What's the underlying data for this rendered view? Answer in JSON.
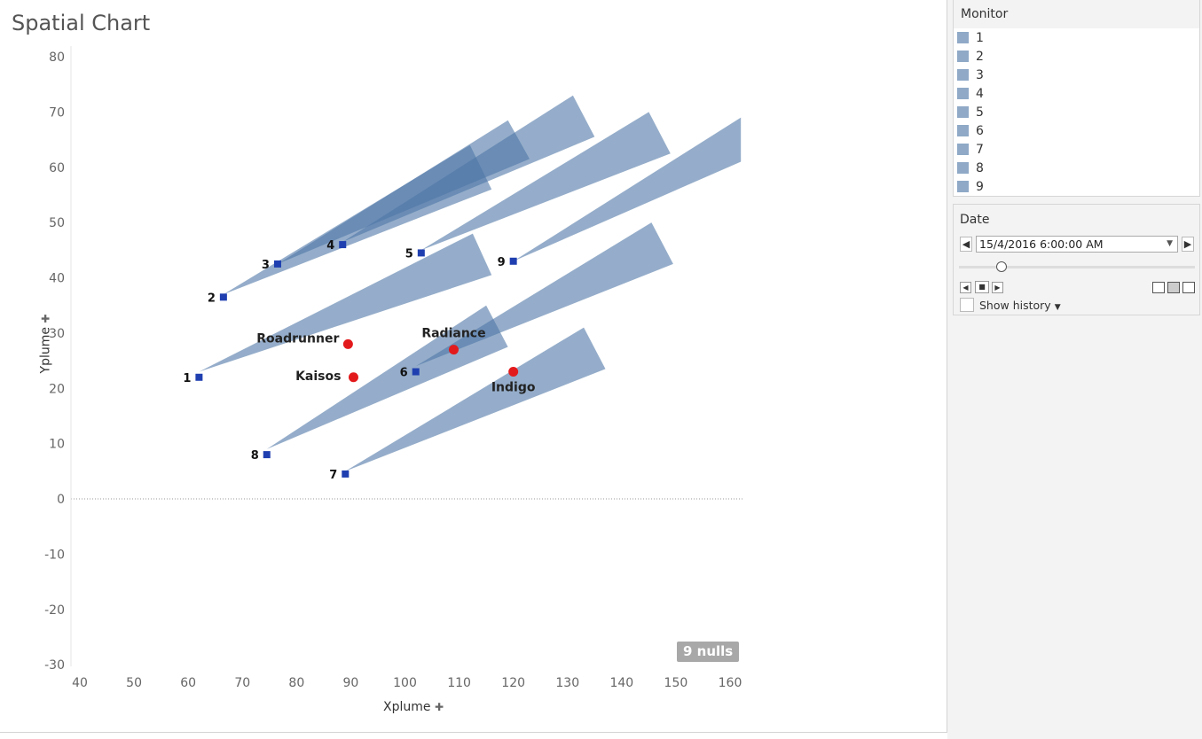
{
  "title": "Spatial Chart",
  "x_axis_label": "Xplume",
  "y_axis_label": "Yplume",
  "nulls_badge": "9 nulls",
  "legend": {
    "title": "Monitor",
    "color": "#8fa9c7",
    "items": [
      "1",
      "2",
      "3",
      "4",
      "5",
      "6",
      "7",
      "8",
      "9"
    ]
  },
  "date_filter": {
    "title": "Date",
    "value": "15/4/2016 6:00:00 AM",
    "show_history_label": "Show history"
  },
  "chart_data": {
    "type": "scatter",
    "xlim": [
      40,
      160
    ],
    "ylim": [
      -30,
      80
    ],
    "x_ticks": [
      40,
      50,
      60,
      70,
      80,
      90,
      100,
      110,
      120,
      130,
      140,
      150,
      160
    ],
    "y_ticks": [
      80,
      70,
      60,
      50,
      40,
      30,
      20,
      10,
      0,
      -10,
      -20,
      -30
    ],
    "zero_line": true,
    "monitors": [
      {
        "label": "1",
        "x": 62,
        "y": 22
      },
      {
        "label": "2",
        "x": 66.5,
        "y": 36.5
      },
      {
        "label": "3",
        "x": 76.5,
        "y": 42.5
      },
      {
        "label": "4",
        "x": 88.5,
        "y": 46
      },
      {
        "label": "5",
        "x": 103,
        "y": 44.5
      },
      {
        "label": "6",
        "x": 102,
        "y": 23
      },
      {
        "label": "7",
        "x": 89,
        "y": 4.5
      },
      {
        "label": "8",
        "x": 74.5,
        "y": 8
      },
      {
        "label": "9",
        "x": 120,
        "y": 43
      }
    ],
    "sites": [
      {
        "label": "Roadrunner",
        "x": 89.5,
        "y": 28,
        "color": "#e31a1c"
      },
      {
        "label": "Kaisos",
        "x": 90.5,
        "y": 22,
        "color": "#e31a1c"
      },
      {
        "label": "Radiance",
        "x": 109,
        "y": 27,
        "color": "#e31a1c"
      },
      {
        "label": "Indigo",
        "x": 120,
        "y": 23,
        "color": "#e31a1c"
      }
    ],
    "plumes": [
      {
        "monitor": "1",
        "apex": [
          62,
          23
        ],
        "far": [
          [
            112.5,
            48
          ],
          [
            116,
            40.5
          ]
        ]
      },
      {
        "monitor": "2",
        "apex": [
          66.5,
          37
        ],
        "far": [
          [
            112,
            64
          ],
          [
            116,
            56
          ]
        ]
      },
      {
        "monitor": "3",
        "apex": [
          76.5,
          42.5
        ],
        "far": [
          [
            119,
            68.5
          ],
          [
            123,
            61.5
          ]
        ]
      },
      {
        "monitor": "4",
        "apex": [
          88.5,
          46.5
        ],
        "far": [
          [
            131,
            73
          ],
          [
            135,
            65.5
          ]
        ]
      },
      {
        "monitor": "5",
        "apex": [
          103,
          45
        ],
        "far": [
          [
            145,
            70
          ],
          [
            149,
            62.5
          ]
        ]
      },
      {
        "monitor": "9",
        "apex": [
          120,
          43
        ],
        "far": [
          [
            162,
            69
          ],
          [
            162,
            61
          ]
        ]
      },
      {
        "monitor": "6",
        "apex": [
          102,
          24
        ],
        "far": [
          [
            145.5,
            50
          ],
          [
            149.5,
            42.5
          ]
        ]
      },
      {
        "monitor": "8",
        "apex": [
          74.5,
          9
        ],
        "far": [
          [
            115,
            35
          ],
          [
            119,
            27.5
          ]
        ]
      },
      {
        "monitor": "7",
        "apex": [
          89,
          5
        ],
        "far": [
          [
            133,
            31
          ],
          [
            137,
            23.5
          ]
        ]
      }
    ]
  }
}
